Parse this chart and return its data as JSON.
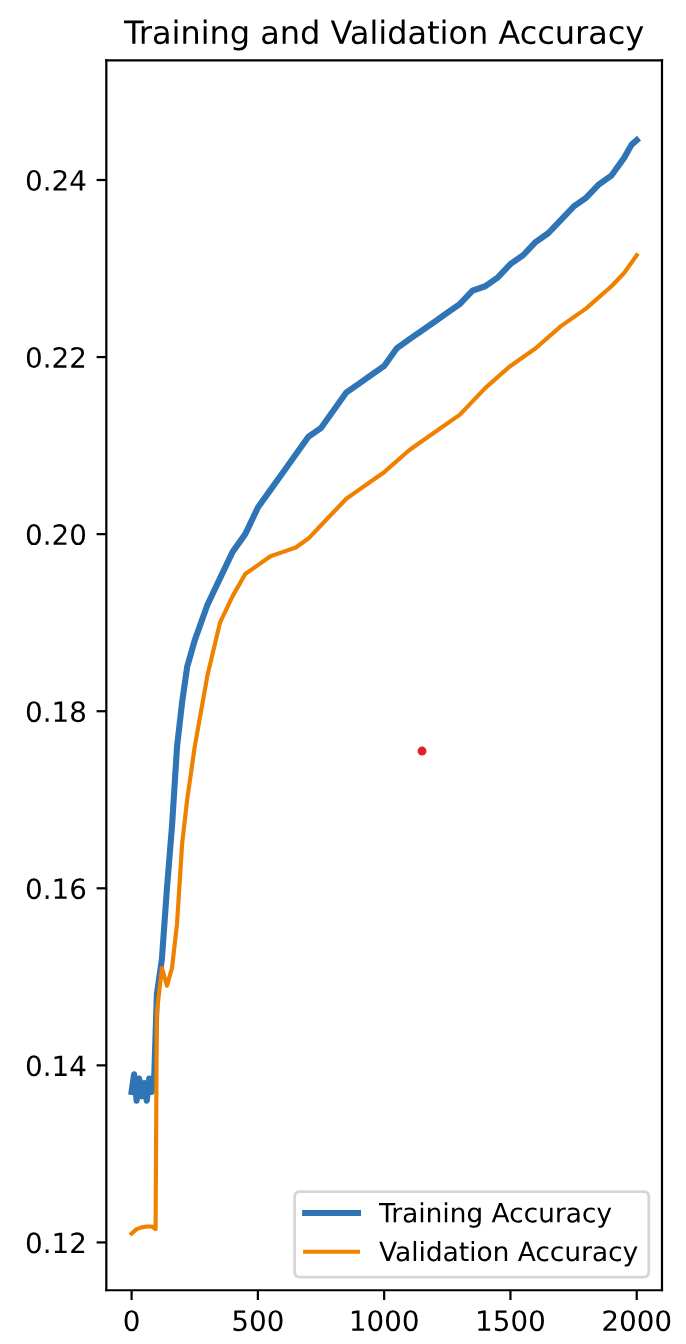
{
  "chart_data": {
    "type": "line",
    "title": "Training and Validation Accuracy",
    "xlim": [
      -100,
      2100
    ],
    "ylim": [
      0.1146,
      0.2535
    ],
    "xticks": [
      0,
      500,
      1000,
      1500,
      2000
    ],
    "yticks": [
      {
        "value": 0.12,
        "label": "0.12"
      },
      {
        "value": 0.14,
        "label": "0.14"
      },
      {
        "value": 0.16,
        "label": "0.16"
      },
      {
        "value": 0.18,
        "label": "0.18"
      },
      {
        "value": 0.2,
        "label": "0.20"
      },
      {
        "value": 0.22,
        "label": "0.22"
      },
      {
        "value": 0.24,
        "label": "0.24"
      }
    ],
    "legend": "bottom right",
    "grid": false,
    "series": [
      {
        "name": "Training Accuracy",
        "color": "#2f75b5",
        "x": [
          0,
          10,
          20,
          30,
          40,
          50,
          60,
          70,
          80,
          90,
          100,
          120,
          140,
          160,
          180,
          200,
          220,
          250,
          300,
          350,
          400,
          450,
          500,
          550,
          600,
          650,
          700,
          750,
          800,
          850,
          900,
          950,
          1000,
          1050,
          1100,
          1150,
          1200,
          1250,
          1300,
          1350,
          1400,
          1450,
          1500,
          1550,
          1600,
          1650,
          1700,
          1750,
          1800,
          1850,
          1900,
          1950,
          1980,
          2000
        ],
        "values": [
          0.137,
          0.139,
          0.136,
          0.1385,
          0.1365,
          0.138,
          0.136,
          0.1385,
          0.137,
          0.139,
          0.148,
          0.152,
          0.16,
          0.167,
          0.176,
          0.181,
          0.185,
          0.188,
          0.192,
          0.195,
          0.198,
          0.2,
          0.203,
          0.205,
          0.207,
          0.209,
          0.211,
          0.212,
          0.214,
          0.216,
          0.217,
          0.218,
          0.219,
          0.221,
          0.222,
          0.223,
          0.224,
          0.225,
          0.226,
          0.2275,
          0.228,
          0.229,
          0.2305,
          0.2315,
          0.233,
          0.234,
          0.2355,
          0.237,
          0.238,
          0.2395,
          0.2405,
          0.2425,
          0.244,
          0.2445
        ]
      },
      {
        "name": "Validation Accuracy",
        "color": "#f08000",
        "x": [
          0,
          20,
          40,
          60,
          80,
          95,
          100,
          120,
          140,
          160,
          180,
          200,
          220,
          250,
          300,
          350,
          400,
          450,
          500,
          550,
          600,
          650,
          700,
          750,
          800,
          850,
          900,
          950,
          1000,
          1100,
          1200,
          1300,
          1400,
          1500,
          1600,
          1700,
          1800,
          1900,
          1950,
          2000
        ],
        "values": [
          0.121,
          0.1215,
          0.1217,
          0.1218,
          0.1218,
          0.1215,
          0.146,
          0.151,
          0.149,
          0.151,
          0.156,
          0.165,
          0.17,
          0.176,
          0.184,
          0.19,
          0.193,
          0.1955,
          0.1965,
          0.1975,
          0.198,
          0.1985,
          0.1995,
          0.201,
          0.2025,
          0.204,
          0.205,
          0.206,
          0.207,
          0.2095,
          0.2115,
          0.2135,
          0.2165,
          0.219,
          0.221,
          0.2235,
          0.2255,
          0.228,
          0.2295,
          0.2315
        ]
      },
      {
        "type": "scatter",
        "color": "#e0202a",
        "x": [
          1150
        ],
        "values": [
          0.1755
        ]
      }
    ]
  }
}
